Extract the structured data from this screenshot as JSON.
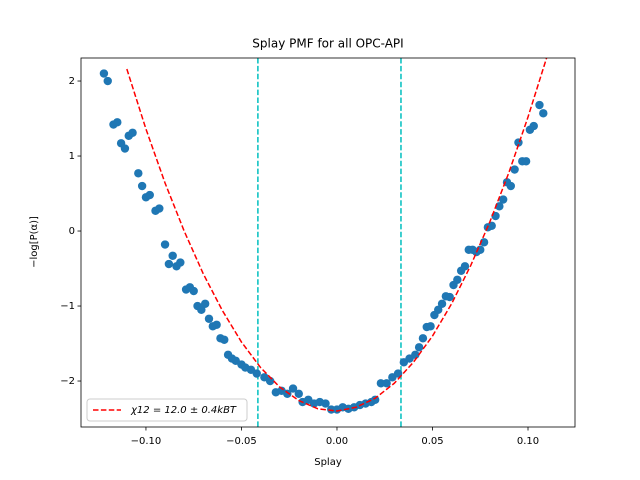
{
  "chart_data": {
    "type": "scatter",
    "title": "Splay PMF for all OPC-API",
    "x_label": "Splay",
    "y_label": "−log[P(α)]",
    "xlim": [
      -0.134,
      0.1246
    ],
    "ylim": [
      -2.613,
      2.307
    ],
    "xticks": [
      {
        "value": -0.1,
        "label": "−0.10"
      },
      {
        "value": -0.05,
        "label": "−0.05"
      },
      {
        "value": 0,
        "label": "0.00"
      },
      {
        "value": 0.05,
        "label": "0.05"
      },
      {
        "value": 0.1,
        "label": "0.10"
      }
    ],
    "yticks": [
      {
        "value": -2,
        "label": "−2"
      },
      {
        "value": -1,
        "label": "−1"
      },
      0,
      1,
      2
    ],
    "legend": "lower left",
    "vlines": {
      "color": "#00bfbf",
      "values": [
        -0.0414,
        0.0335
      ]
    },
    "series": [
      {
        "kind": "scatter",
        "color": "#1f77b4",
        "x": [
          -0.122,
          -0.12,
          -0.117,
          -0.115,
          -0.113,
          -0.111,
          -0.109,
          -0.107,
          -0.104,
          -0.102,
          -0.1,
          -0.098,
          -0.095,
          -0.093,
          -0.09,
          -0.088,
          -0.086,
          -0.084,
          -0.082,
          -0.079,
          -0.077,
          -0.075,
          -0.073,
          -0.071,
          -0.069,
          -0.067,
          -0.065,
          -0.063,
          -0.061,
          -0.059,
          -0.057,
          -0.055,
          -0.053,
          -0.05,
          -0.048,
          -0.045,
          -0.042,
          -0.038,
          -0.035,
          -0.032,
          -0.029,
          -0.026,
          -0.023,
          -0.02,
          -0.018,
          -0.015,
          -0.012,
          -0.009,
          -0.006,
          -0.003,
          0.0,
          0.003,
          0.006,
          0.009,
          0.012,
          0.015,
          0.018,
          0.02,
          0.023,
          0.026,
          0.029,
          0.032,
          0.035,
          0.038,
          0.041,
          0.043,
          0.045,
          0.047,
          0.049,
          0.051,
          0.053,
          0.055,
          0.057,
          0.059,
          0.061,
          0.063,
          0.065,
          0.067,
          0.069,
          0.071,
          0.073,
          0.075,
          0.077,
          0.079,
          0.081,
          0.083,
          0.085,
          0.087,
          0.089,
          0.091,
          0.093,
          0.095,
          0.097,
          0.099,
          0.101,
          0.103,
          0.106,
          0.108
        ],
        "values": [
          2.1,
          2.0,
          1.42,
          1.45,
          1.17,
          1.1,
          1.27,
          1.31,
          0.77,
          0.6,
          0.45,
          0.48,
          0.27,
          0.3,
          -0.18,
          -0.44,
          -0.33,
          -0.47,
          -0.42,
          -0.78,
          -0.75,
          -0.8,
          -1.0,
          -1.05,
          -0.97,
          -1.17,
          -1.27,
          -1.25,
          -1.43,
          -1.45,
          -1.65,
          -1.7,
          -1.73,
          -1.78,
          -1.82,
          -1.85,
          -1.9,
          -1.95,
          -2.0,
          -2.15,
          -2.13,
          -2.17,
          -2.1,
          -2.17,
          -2.28,
          -2.25,
          -2.3,
          -2.28,
          -2.3,
          -2.38,
          -2.38,
          -2.35,
          -2.37,
          -2.35,
          -2.32,
          -2.3,
          -2.28,
          -2.25,
          -2.03,
          -2.03,
          -1.95,
          -1.9,
          -1.75,
          -1.7,
          -1.65,
          -1.55,
          -1.43,
          -1.28,
          -1.27,
          -1.12,
          -1.05,
          -0.97,
          -0.87,
          -0.88,
          -0.72,
          -0.65,
          -0.53,
          -0.47,
          -0.25,
          -0.25,
          -0.28,
          -0.25,
          -0.15,
          0.05,
          0.07,
          0.2,
          0.33,
          0.42,
          0.65,
          0.6,
          0.82,
          1.18,
          0.93,
          0.93,
          1.35,
          1.4,
          1.68,
          1.57
        ]
      },
      {
        "kind": "line",
        "name": "χ12 = 12.0 ± 0.4kBT",
        "color": "#ff0000",
        "x": [
          -0.11,
          -0.1,
          -0.09,
          -0.08,
          -0.07,
          -0.06,
          -0.05,
          -0.04,
          -0.03,
          -0.02,
          -0.01,
          0,
          0.01,
          0.02,
          0.03,
          0.04,
          0.05,
          0.06,
          0.07,
          0.08,
          0.09,
          0.1,
          0.11
        ],
        "values": [
          2.16,
          1.36,
          0.64,
          0.0,
          -0.57,
          -1.06,
          -1.48,
          -1.82,
          -2.08,
          -2.26,
          -2.37,
          -2.4,
          -2.35,
          -2.23,
          -2.03,
          -1.75,
          -1.4,
          -0.97,
          -0.46,
          0.12,
          0.78,
          1.52,
          2.33
        ]
      }
    ]
  }
}
